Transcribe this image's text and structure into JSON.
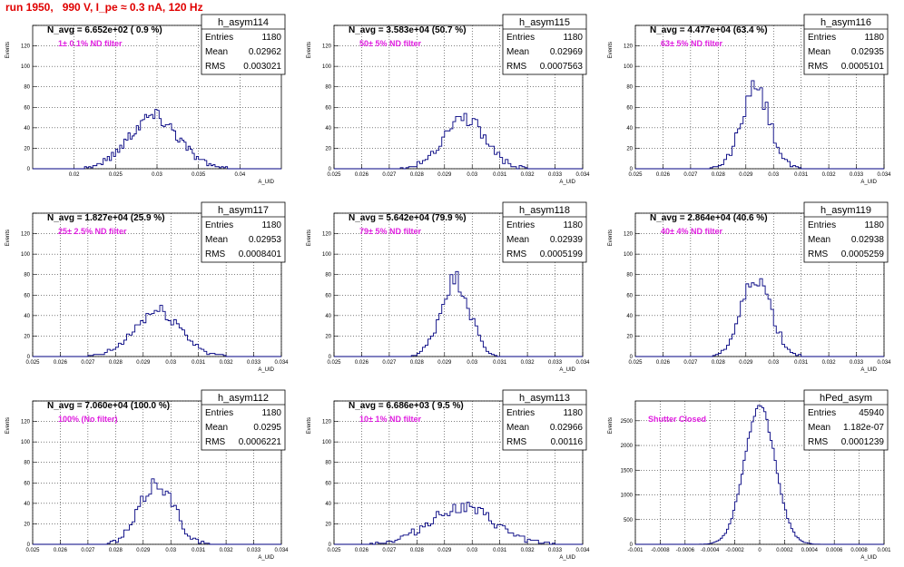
{
  "header": {
    "title": "run 1950,   990 V, I_pe ≈ 0.3 nA, 120 Hz"
  },
  "colors": {
    "hist_line": "#000080",
    "title_red": "#e00000",
    "filter_magenta": "#e020e0",
    "grid": "#000000"
  },
  "chart_data": [
    {
      "type": "bar",
      "name": "h_asym114",
      "nav_text": "N_avg = 6.652e+02 ( 0.9 %)",
      "filter_text": "1± 0.1% ND filter",
      "stats": {
        "Entries": "1180",
        "Mean": "0.02962",
        "RMS": "0.003021"
      },
      "xlabel": "A_UID",
      "ylabel": "Events",
      "xlim": [
        0.015,
        0.045
      ],
      "ylim": [
        0,
        140
      ],
      "xticks": [
        0.02,
        0.025,
        0.03,
        0.035,
        0.04
      ],
      "xtick_labels": [
        "0.02",
        "0.025",
        "0.03",
        "0.035",
        "0.04"
      ],
      "yticks": [
        0,
        20,
        40,
        60,
        80,
        100,
        120,
        140
      ],
      "ytick_labels": [
        "0",
        "20",
        "40",
        "60",
        "80",
        "100",
        "120",
        ""
      ],
      "gen": {
        "kind": "gauss",
        "mean": 0.0296,
        "sigma": 0.003,
        "peak": 52,
        "bins": 120,
        "seed": 114
      }
    },
    {
      "type": "bar",
      "name": "h_asym115",
      "nav_text": "N_avg = 3.583e+04 (50.7 %)",
      "filter_text": "50± 5% ND filter",
      "stats": {
        "Entries": "1180",
        "Mean": "0.02969",
        "RMS": "0.0007563"
      },
      "xlabel": "A_UID",
      "ylabel": "Events",
      "xlim": [
        0.025,
        0.034
      ],
      "ylim": [
        0,
        140
      ],
      "xticks": [
        0.025,
        0.026,
        0.027,
        0.028,
        0.029,
        0.03,
        0.031,
        0.032,
        0.033,
        0.034
      ],
      "xtick_labels": [
        "0.025",
        "0.026",
        "0.027",
        "0.028",
        "0.029",
        "0.03",
        "0.031",
        "0.032",
        "0.033",
        "0.034"
      ],
      "yticks": [
        0,
        20,
        40,
        60,
        80,
        100,
        120,
        140
      ],
      "ytick_labels": [
        "0",
        "20",
        "40",
        "60",
        "80",
        "100",
        "120",
        ""
      ],
      "gen": {
        "kind": "gauss",
        "mean": 0.0297,
        "sigma": 0.00076,
        "peak": 50,
        "bins": 90,
        "seed": 115
      }
    },
    {
      "type": "bar",
      "name": "h_asym116",
      "nav_text": "N_avg = 4.477e+04 (63.4 %)",
      "filter_text": "63± 5% ND filter",
      "stats": {
        "Entries": "1180",
        "Mean": "0.02935",
        "RMS": "0.0005101"
      },
      "xlabel": "A_UID",
      "ylabel": "Events",
      "xlim": [
        0.025,
        0.034
      ],
      "ylim": [
        0,
        140
      ],
      "xticks": [
        0.025,
        0.026,
        0.027,
        0.028,
        0.029,
        0.03,
        0.031,
        0.032,
        0.033,
        0.034
      ],
      "xtick_labels": [
        "0.025",
        "0.026",
        "0.027",
        "0.028",
        "0.029",
        "0.03",
        "0.031",
        "0.032",
        "0.033",
        "0.034"
      ],
      "yticks": [
        0,
        20,
        40,
        60,
        80,
        100,
        120,
        140
      ],
      "ytick_labels": [
        "0",
        "20",
        "40",
        "60",
        "80",
        "100",
        "120",
        ""
      ],
      "gen": {
        "kind": "gauss",
        "mean": 0.02935,
        "sigma": 0.00051,
        "peak": 78,
        "bins": 90,
        "seed": 116
      }
    },
    {
      "type": "bar",
      "name": "h_asym117",
      "nav_text": "N_avg = 1.827e+04 (25.9 %)",
      "filter_text": "25± 2.5% ND filter",
      "stats": {
        "Entries": "1180",
        "Mean": "0.02953",
        "RMS": "0.0008401"
      },
      "xlabel": "A_UID",
      "ylabel": "Events",
      "xlim": [
        0.025,
        0.034
      ],
      "ylim": [
        0,
        140
      ],
      "xticks": [
        0.025,
        0.026,
        0.027,
        0.028,
        0.029,
        0.03,
        0.031,
        0.032,
        0.033,
        0.034
      ],
      "xtick_labels": [
        "0.025",
        "0.026",
        "0.027",
        "0.028",
        "0.029",
        "0.03",
        "0.031",
        "0.032",
        "0.033",
        "0.034"
      ],
      "yticks": [
        0,
        20,
        40,
        60,
        80,
        100,
        120,
        140
      ],
      "ytick_labels": [
        "0",
        "20",
        "40",
        "60",
        "80",
        "100",
        "120",
        ""
      ],
      "gen": {
        "kind": "gauss",
        "mean": 0.02953,
        "sigma": 0.00084,
        "peak": 44,
        "bins": 90,
        "seed": 117
      }
    },
    {
      "type": "bar",
      "name": "h_asym118",
      "nav_text": "N_avg = 5.642e+04 (79.9 %)",
      "filter_text": "79± 5% ND filter",
      "stats": {
        "Entries": "1180",
        "Mean": "0.02939",
        "RMS": "0.0005199"
      },
      "xlabel": "A_UID",
      "ylabel": "Events",
      "xlim": [
        0.025,
        0.034
      ],
      "ylim": [
        0,
        140
      ],
      "xticks": [
        0.025,
        0.026,
        0.027,
        0.028,
        0.029,
        0.03,
        0.031,
        0.032,
        0.033,
        0.034
      ],
      "xtick_labels": [
        "0.025",
        "0.026",
        "0.027",
        "0.028",
        "0.029",
        "0.03",
        "0.031",
        "0.032",
        "0.033",
        "0.034"
      ],
      "yticks": [
        0,
        20,
        40,
        60,
        80,
        100,
        120,
        140
      ],
      "ytick_labels": [
        "0",
        "20",
        "40",
        "60",
        "80",
        "100",
        "120",
        ""
      ],
      "gen": {
        "kind": "gauss",
        "mean": 0.02939,
        "sigma": 0.00052,
        "peak": 76,
        "bins": 90,
        "seed": 118
      }
    },
    {
      "type": "bar",
      "name": "h_asym119",
      "nav_text": "N_avg = 2.864e+04 (40.6 %)",
      "filter_text": "40± 4% ND filter",
      "stats": {
        "Entries": "1180",
        "Mean": "0.02938",
        "RMS": "0.0005259"
      },
      "xlabel": "A_UID",
      "ylabel": "Events",
      "xlim": [
        0.025,
        0.034
      ],
      "ylim": [
        0,
        140
      ],
      "xticks": [
        0.025,
        0.026,
        0.027,
        0.028,
        0.029,
        0.03,
        0.031,
        0.032,
        0.033,
        0.034
      ],
      "xtick_labels": [
        "0.025",
        "0.026",
        "0.027",
        "0.028",
        "0.029",
        "0.03",
        "0.031",
        "0.032",
        "0.033",
        "0.034"
      ],
      "yticks": [
        0,
        20,
        40,
        60,
        80,
        100,
        120,
        140
      ],
      "ytick_labels": [
        "0",
        "20",
        "40",
        "60",
        "80",
        "100",
        "120",
        ""
      ],
      "gen": {
        "kind": "gauss",
        "mean": 0.02938,
        "sigma": 0.00053,
        "peak": 78,
        "bins": 90,
        "seed": 119
      }
    },
    {
      "type": "bar",
      "name": "h_asym112",
      "nav_text": "N_avg = 7.060e+04 (100.0 %)",
      "filter_text": "100% (No filter)",
      "stats": {
        "Entries": "1180",
        "Mean": "0.0295",
        "RMS": "0.0006221"
      },
      "xlabel": "A_UID",
      "ylabel": "Events",
      "xlim": [
        0.025,
        0.034
      ],
      "ylim": [
        0,
        140
      ],
      "xticks": [
        0.025,
        0.026,
        0.027,
        0.028,
        0.029,
        0.03,
        0.031,
        0.032,
        0.033,
        0.034
      ],
      "xtick_labels": [
        "0.025",
        "0.026",
        "0.027",
        "0.028",
        "0.029",
        "0.03",
        "0.031",
        "0.032",
        "0.033",
        "0.034"
      ],
      "yticks": [
        0,
        20,
        40,
        60,
        80,
        100,
        120,
        140
      ],
      "ytick_labels": [
        "0",
        "20",
        "40",
        "60",
        "80",
        "100",
        "120",
        ""
      ],
      "gen": {
        "kind": "gauss",
        "mean": 0.0295,
        "sigma": 0.00062,
        "peak": 60,
        "bins": 90,
        "seed": 112
      }
    },
    {
      "type": "bar",
      "name": "h_asym113",
      "nav_text": "N_avg = 6.686e+03 ( 9.5 %)",
      "filter_text": "10± 1% ND filter",
      "stats": {
        "Entries": "1180",
        "Mean": "0.02966",
        "RMS": "0.00116"
      },
      "xlabel": "A_UID",
      "ylabel": "Events",
      "xlim": [
        0.025,
        0.034
      ],
      "ylim": [
        0,
        140
      ],
      "xticks": [
        0.025,
        0.026,
        0.027,
        0.028,
        0.029,
        0.03,
        0.031,
        0.032,
        0.033,
        0.034
      ],
      "xtick_labels": [
        "0.025",
        "0.026",
        "0.027",
        "0.028",
        "0.029",
        "0.03",
        "0.031",
        "0.032",
        "0.033",
        "0.034"
      ],
      "yticks": [
        0,
        20,
        40,
        60,
        80,
        100,
        120,
        140
      ],
      "ytick_labels": [
        "0",
        "20",
        "40",
        "60",
        "80",
        "100",
        "120",
        ""
      ],
      "gen": {
        "kind": "gauss",
        "mean": 0.0296,
        "sigma": 0.00116,
        "peak": 36,
        "bins": 90,
        "seed": 113
      }
    },
    {
      "type": "bar",
      "name": "hPed_asym",
      "nav_text": "",
      "filter_text": "Shutter Closed",
      "stats": {
        "Entries": "45940",
        "Mean": "1.182e-07",
        "RMS": "0.0001239"
      },
      "xlabel": "A_UID",
      "ylabel": "Events",
      "xlim": [
        -0.001,
        0.001
      ],
      "ylim": [
        0,
        2900
      ],
      "xticks": [
        -0.001,
        -0.0008,
        -0.0006,
        -0.0004,
        -0.0002,
        0,
        0.0002,
        0.0004,
        0.0006,
        0.0008,
        0.001
      ],
      "xtick_labels": [
        "-0.001",
        "-0.0008",
        "-0.0006",
        "-0.0004",
        "-0.0002",
        "0",
        "0.0002",
        "0.0004",
        "0.0006",
        "0.0008",
        "0.001"
      ],
      "yticks": [
        0,
        500,
        1000,
        1500,
        2000,
        2500
      ],
      "ytick_labels": [
        "0",
        "500",
        "1000",
        "1500",
        "2000",
        "2500"
      ],
      "gen": {
        "kind": "gauss",
        "mean": 0.0,
        "sigma": 0.000124,
        "peak": 2780,
        "bins": 120,
        "seed": 200
      }
    }
  ]
}
